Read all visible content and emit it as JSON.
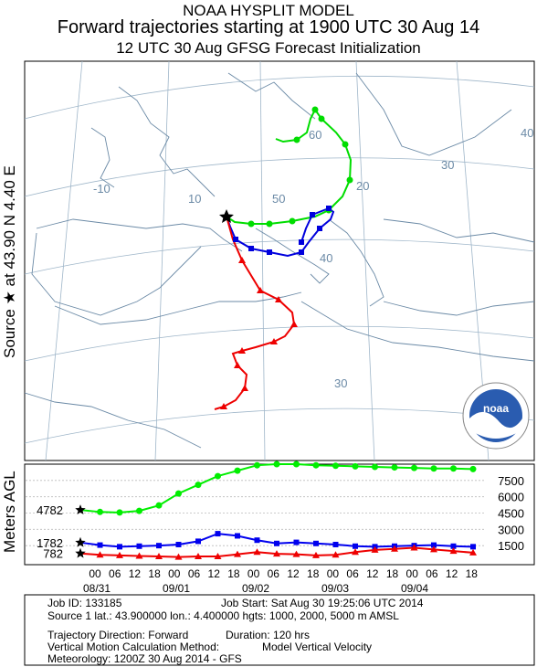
{
  "header": {
    "line1": "NOAA HYSPLIT MODEL",
    "line2": "Forward trajectories starting at 1900 UTC 30 Aug 14",
    "line3": "12 UTC 30 Aug    GFSG  Forecast Initialization"
  },
  "side_label": "Source ★ at   43.90 N    4.40 E",
  "agl_label": "Meters AGL",
  "map": {
    "lon_labels": [
      "-10",
      "10",
      "20",
      "30",
      "40"
    ],
    "lat_labels": [
      "60",
      "50",
      "40",
      "30"
    ]
  },
  "noaa_logo_text": "noaa",
  "chart_data": {
    "type": "line",
    "title": "",
    "xlabel": "",
    "ylabel": "Meters AGL",
    "x_ticks": [
      "00",
      "06",
      "12",
      "18",
      "00",
      "06",
      "12",
      "18",
      "00",
      "06",
      "12",
      "18",
      "00",
      "06",
      "12",
      "18",
      "00",
      "06",
      "12",
      "18"
    ],
    "date_labels": [
      "08/31",
      "09/01",
      "09/02",
      "09/03",
      "09/04"
    ],
    "y_ticks": [
      1500,
      3000,
      4500,
      6000,
      7500
    ],
    "ylim": [
      0,
      9000
    ],
    "hours_after_start": [
      0,
      6,
      12,
      18,
      24,
      30,
      36,
      42,
      48,
      54,
      60,
      66,
      72,
      78,
      84,
      90,
      96,
      102,
      108,
      114,
      120
    ],
    "series": [
      {
        "start_label": "4782",
        "color": "#00ee00",
        "marker": "circle",
        "values": [
          4782,
          4600,
          4550,
          4700,
          5200,
          6300,
          7100,
          7900,
          8400,
          8900,
          9000,
          9000,
          8900,
          8850,
          8800,
          8750,
          8700,
          8650,
          8600,
          8600,
          8550
        ]
      },
      {
        "start_label": "1782",
        "color": "#0000ee",
        "marker": "square",
        "values": [
          1782,
          1550,
          1400,
          1450,
          1500,
          1600,
          1900,
          2600,
          2400,
          2000,
          1700,
          1800,
          1700,
          1600,
          1450,
          1400,
          1450,
          1500,
          1550,
          1450,
          1400
        ]
      },
      {
        "start_label": "782",
        "color": "#ee0000",
        "marker": "triangle",
        "values": [
          782,
          650,
          600,
          550,
          500,
          450,
          500,
          500,
          700,
          900,
          750,
          700,
          600,
          650,
          900,
          1100,
          1200,
          1300,
          1150,
          1000,
          850
        ]
      }
    ]
  },
  "info": {
    "job_id": "Job ID: 133185",
    "job_start": "Job Start: Sat Aug 30 19:25:06 UTC 2014",
    "source": "Source 1 lat.: 43.900000  lon.: 4.400000  hgts: 1000, 2000, 5000 m AMSL",
    "direction": "Trajectory Direction: Forward",
    "duration": "Duration: 120 hrs",
    "vertical": "Vertical Motion Calculation Method:",
    "vertical_value": "Model Vertical Velocity",
    "meteorology": "Meteorology: 1200Z 30 Aug 2014 - GFS"
  }
}
